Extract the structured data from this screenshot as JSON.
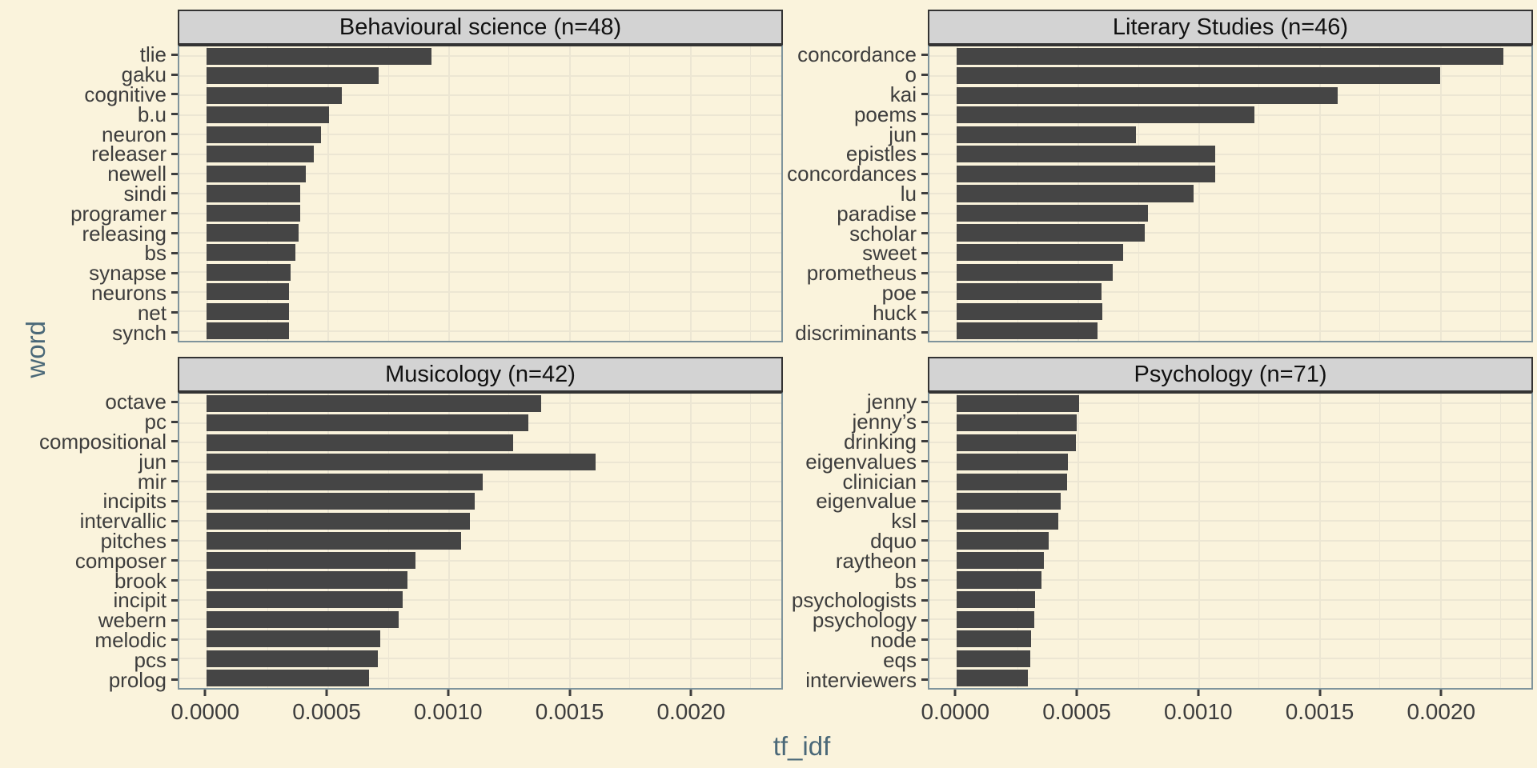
{
  "figure": {
    "y_axis_title": "word",
    "x_axis_title": "tf_idf",
    "background_color": "#faf3dc",
    "bar_color": "#454545",
    "panel_border_color": "#7f949c",
    "strip_background": "#d3d3d3",
    "strip_border_color": "#333333",
    "gridline_color": "#ece6d3",
    "axis_title_color": "#4a6878",
    "axis_text_color": "#3d3d3d"
  },
  "x_axis": {
    "xlim": [
      -0.000113,
      0.002378
    ],
    "ticks": [
      {
        "label": "0.0000",
        "value": 0.0
      },
      {
        "label": "0.0005",
        "value": 0.0005
      },
      {
        "label": "0.0010",
        "value": 0.001
      },
      {
        "label": "0.0015",
        "value": 0.0015
      },
      {
        "label": "0.0020",
        "value": 0.002
      }
    ],
    "minor": [
      0.00025,
      0.00075,
      0.00125,
      0.00175,
      0.00225
    ]
  },
  "chart_data": [
    {
      "type": "bar",
      "orientation": "horizontal",
      "title": "Behavioural science (n=48)",
      "xlabel": "tf_idf",
      "ylabel": "word",
      "categories": [
        "tlie",
        "gaku",
        "cognitive",
        "b.u",
        "neuron",
        "releaser",
        "newell",
        "sindi",
        "programer",
        "releasing",
        "bs",
        "synapse",
        "neurons",
        "net",
        "synch"
      ],
      "values": [
        0.00093,
        0.000712,
        0.000559,
        0.000508,
        0.000473,
        0.000443,
        0.000411,
        0.000387,
        0.000387,
        0.000379,
        0.000367,
        0.000349,
        0.000341,
        0.000341,
        0.00034
      ]
    },
    {
      "type": "bar",
      "orientation": "horizontal",
      "title": "Literary Studies (n=46)",
      "xlabel": "tf_idf",
      "ylabel": "word",
      "categories": [
        "concordance",
        "o",
        "kai",
        "poems",
        "jun",
        "epistles",
        "concordances",
        "lu",
        "paradise",
        "scholar",
        "sweet",
        "prometheus",
        "poe",
        "huck",
        "discriminants"
      ],
      "values": [
        0.002262,
        0.001999,
        0.001575,
        0.001232,
        0.00074,
        0.001071,
        0.001071,
        0.000981,
        0.00079,
        0.000779,
        0.000687,
        0.000644,
        0.0006,
        0.000602,
        0.000584
      ]
    },
    {
      "type": "bar",
      "orientation": "horizontal",
      "title": "Musicology (n=42)",
      "xlabel": "tf_idf",
      "ylabel": "word",
      "categories": [
        "octave",
        "pc",
        "compositional",
        "jun",
        "mir",
        "incipits",
        "intervallic",
        "pitches",
        "composer",
        "brook",
        "incipit",
        "webern",
        "melodic",
        "pcs",
        "prolog"
      ],
      "values": [
        0.001384,
        0.001332,
        0.001267,
        0.001609,
        0.001144,
        0.001108,
        0.001088,
        0.001052,
        0.000864,
        0.000831,
        0.000812,
        0.000795,
        0.000717,
        0.000709,
        0.000673
      ]
    },
    {
      "type": "bar",
      "orientation": "horizontal",
      "title": "Psychology (n=71)",
      "xlabel": "tf_idf",
      "ylabel": "word",
      "categories": [
        "jenny",
        "jenny’s",
        "drinking",
        "eigenvalues",
        "clinician",
        "eigenvalue",
        "ksl",
        "dquo",
        "raytheon",
        "bs",
        "psychologists",
        "psychology",
        "node",
        "eqs",
        "interviewers"
      ],
      "values": [
        0.000505,
        0.000495,
        0.000492,
        0.00046,
        0.000458,
        0.000429,
        0.00042,
        0.000379,
        0.000361,
        0.000351,
        0.000324,
        0.00032,
        0.000307,
        0.000304,
        0.000293
      ]
    }
  ]
}
